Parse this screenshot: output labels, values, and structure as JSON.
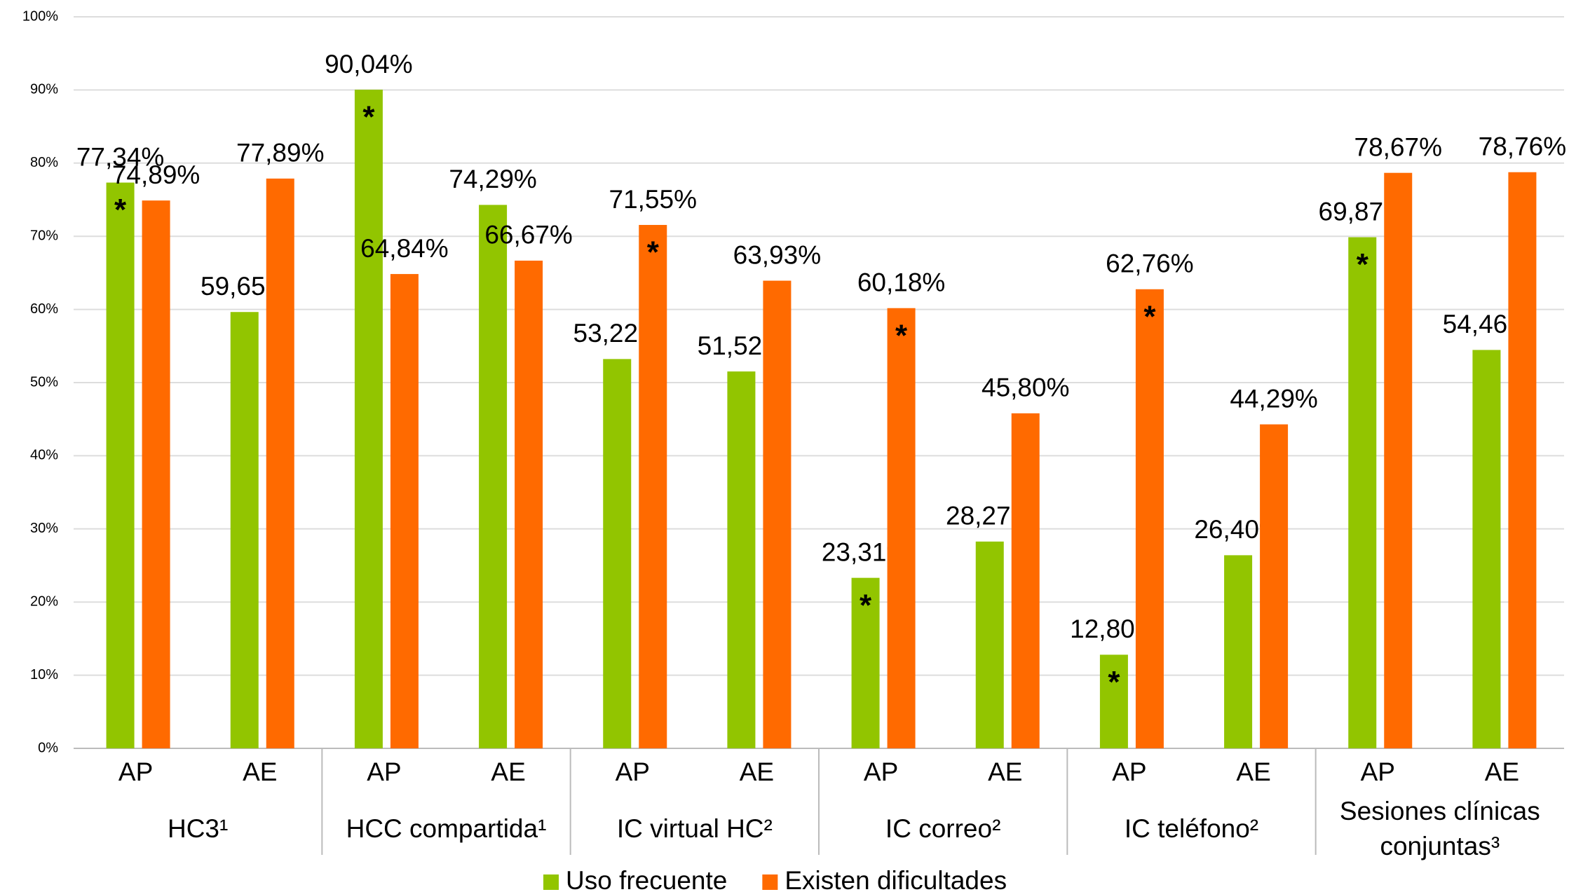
{
  "chart_data": {
    "type": "bar",
    "categories": [
      "AP",
      "AE",
      "AP",
      "AE",
      "AP",
      "AE",
      "AP",
      "AE",
      "AP",
      "AE",
      "AP",
      "AE"
    ],
    "groups": [
      {
        "name": [
          "HC3¹"
        ],
        "size": 2
      },
      {
        "name": [
          "HCC compartida¹"
        ],
        "size": 2
      },
      {
        "name": [
          "IC virtual HC²"
        ],
        "size": 2
      },
      {
        "name": [
          "IC correo²"
        ],
        "size": 2
      },
      {
        "name": [
          "IC teléfono²"
        ],
        "size": 2
      },
      {
        "name": [
          "Sesiones clínicas",
          "conjuntas³"
        ],
        "size": 2
      }
    ],
    "series": [
      {
        "name": "Uso frecuente",
        "color": "#92c500",
        "values": [
          77.34,
          59.65,
          90.04,
          74.29,
          53.22,
          51.52,
          23.31,
          28.27,
          12.8,
          26.4,
          69.87,
          54.46
        ],
        "value_labels": [
          "77,34%",
          "59,65%",
          "90,04%",
          "74,29%",
          "53,22%",
          "51,52%",
          "23,31%",
          "28,27%",
          "12,80%",
          "26,40%",
          "69,87%",
          "54,46%"
        ],
        "markers": [
          "*",
          null,
          "*",
          null,
          null,
          null,
          "*",
          null,
          "*",
          null,
          "*",
          null
        ]
      },
      {
        "name": "Existen dificultades",
        "color": "#ff6a00",
        "values": [
          74.89,
          77.89,
          64.84,
          66.67,
          71.55,
          63.93,
          60.18,
          45.8,
          62.76,
          44.29,
          78.67,
          78.76
        ],
        "value_labels": [
          "74,89%",
          "77,89%",
          "64,84%",
          "66,67%",
          "71,55%",
          "63,93%",
          "60,18%",
          "45,80%",
          "62,76%",
          "44,29%",
          "78,67%",
          "78,76%"
        ],
        "markers": [
          null,
          null,
          null,
          null,
          "*",
          null,
          "*",
          null,
          "*",
          null,
          null,
          null
        ]
      }
    ],
    "ylim": [
      0,
      100
    ],
    "yticks": [
      {
        "value": 0,
        "label": "0%"
      },
      {
        "value": 10,
        "label": "10%"
      },
      {
        "value": 20,
        "label": "20%"
      },
      {
        "value": 30,
        "label": "30%"
      },
      {
        "value": 40,
        "label": "40%"
      },
      {
        "value": 50,
        "label": "50%"
      },
      {
        "value": 60,
        "label": "60%"
      },
      {
        "value": 70,
        "label": "70%"
      },
      {
        "value": 80,
        "label": "80%"
      },
      {
        "value": 90,
        "label": "90%"
      },
      {
        "value": 100,
        "label": "100%"
      }
    ],
    "grid": true,
    "legend": "bottom"
  }
}
